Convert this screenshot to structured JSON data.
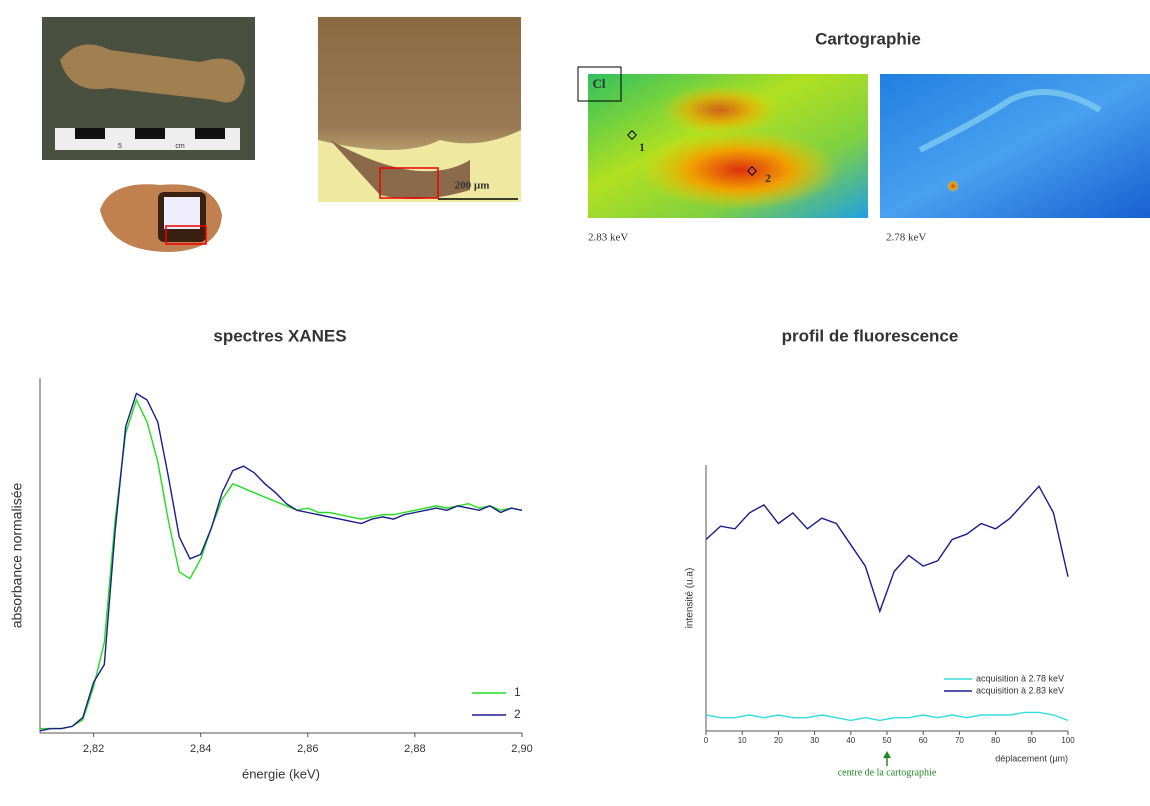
{
  "figure": {
    "map_title": "Cartographie",
    "map_element": "Cl",
    "point_1": "1",
    "point_2": "2",
    "map_left_caption": "2.83 keV",
    "map_right_caption": "2.78 keV",
    "scale_bar": "200 µm",
    "ruler_a": "5",
    "ruler_b": "cm"
  },
  "chart_data": [
    {
      "type": "line",
      "title": "spectres XANES",
      "x_label": "énergie (keV)",
      "y_label": "absorbance normalisée",
      "x": [
        2.81,
        2.812,
        2.814,
        2.816,
        2.818,
        2.82,
        2.822,
        2.824,
        2.826,
        2.828,
        2.83,
        2.832,
        2.834,
        2.836,
        2.838,
        2.84,
        2.842,
        2.844,
        2.846,
        2.848,
        2.85,
        2.852,
        2.854,
        2.856,
        2.858,
        2.86,
        2.862,
        2.864,
        2.866,
        2.868,
        2.87,
        2.872,
        2.874,
        2.876,
        2.878,
        2.88,
        2.882,
        2.884,
        2.886,
        2.888,
        2.89,
        2.892,
        2.894,
        2.896,
        2.898,
        2.9
      ],
      "series": [
        {
          "name": "1",
          "color": "#22dd22",
          "values": [
            0.01,
            0.01,
            0.01,
            0.02,
            0.05,
            0.2,
            0.4,
            0.95,
            1.35,
            1.5,
            1.4,
            1.22,
            0.95,
            0.72,
            0.69,
            0.78,
            0.92,
            1.05,
            1.12,
            1.1,
            1.08,
            1.06,
            1.04,
            1.02,
            1.0,
            1.01,
            0.99,
            0.99,
            0.98,
            0.97,
            0.96,
            0.97,
            0.98,
            0.98,
            0.99,
            1.0,
            1.01,
            1.02,
            1.01,
            1.02,
            1.03,
            1.01,
            1.02,
            1.0,
            1.01,
            1.0
          ]
        },
        {
          "name": "2",
          "color": "#1c1c8c",
          "values": [
            0.0,
            0.01,
            0.01,
            0.02,
            0.06,
            0.22,
            0.3,
            0.9,
            1.38,
            1.53,
            1.5,
            1.4,
            1.15,
            0.88,
            0.78,
            0.8,
            0.92,
            1.08,
            1.18,
            1.2,
            1.17,
            1.12,
            1.08,
            1.03,
            1.0,
            0.99,
            0.98,
            0.97,
            0.96,
            0.95,
            0.94,
            0.96,
            0.97,
            0.96,
            0.98,
            0.99,
            1.0,
            1.01,
            1.0,
            1.02,
            1.01,
            1.0,
            1.02,
            0.99,
            1.01,
            1.0
          ]
        }
      ],
      "xlim": [
        2.81,
        2.9
      ],
      "xticks": [
        {
          "value": 2.82,
          "label": "2,82"
        },
        {
          "value": 2.84,
          "label": "2,84"
        },
        {
          "value": 2.86,
          "label": "2,86"
        },
        {
          "value": 2.88,
          "label": "2,88"
        },
        {
          "value": 2.9,
          "label": "2,90"
        }
      ],
      "ylim": [
        -0.01,
        1.6
      ],
      "legend": "lower right"
    },
    {
      "type": "line",
      "title": "profil de fluorescence",
      "x_label": "déplacement (µm)",
      "y_label": "intensité (u.a)",
      "x": [
        0,
        4,
        8,
        12,
        16,
        20,
        24,
        28,
        32,
        36,
        40,
        44,
        48,
        52,
        56,
        60,
        64,
        68,
        72,
        76,
        80,
        84,
        88,
        92,
        96,
        100
      ],
      "series": [
        {
          "name": "acquisition à 2.78 keV",
          "color": "#33dddd",
          "values": [
            0.06,
            0.05,
            0.05,
            0.06,
            0.05,
            0.06,
            0.05,
            0.05,
            0.06,
            0.05,
            0.04,
            0.05,
            0.04,
            0.05,
            0.05,
            0.06,
            0.05,
            0.06,
            0.05,
            0.06,
            0.06,
            0.06,
            0.07,
            0.07,
            0.06,
            0.04
          ]
        },
        {
          "name": "acquisition à 2.83 keV",
          "color": "#1c1c8c",
          "values": [
            0.72,
            0.77,
            0.76,
            0.82,
            0.85,
            0.78,
            0.82,
            0.76,
            0.8,
            0.78,
            0.7,
            0.62,
            0.45,
            0.6,
            0.66,
            0.62,
            0.64,
            0.72,
            0.74,
            0.78,
            0.76,
            0.8,
            0.86,
            0.92,
            0.82,
            0.58
          ]
        }
      ],
      "xlim": [
        0,
        100
      ],
      "xticks": [
        0,
        10,
        20,
        30,
        40,
        50,
        60,
        70,
        80,
        90,
        100
      ],
      "ylim": [
        0,
        1
      ],
      "legend": "lower right",
      "annotation": {
        "text": "centre de la cartographie",
        "x": 50
      }
    }
  ]
}
